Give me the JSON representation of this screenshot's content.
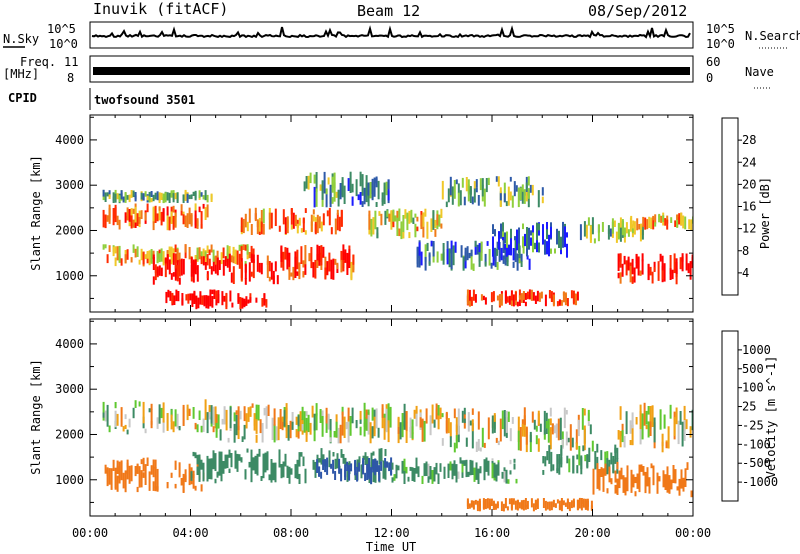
{
  "header": {
    "station": "Inuvik (fitACF)",
    "beam": "Beam 12",
    "date": "08/Sep/2012"
  },
  "strips": {
    "nsky_label": "N.Sky",
    "nsky_ticks": [
      "10^5",
      "10^0"
    ],
    "nsearch_label": "N.Search",
    "nsearch_ticks": [
      "10^5",
      "10^0"
    ],
    "freq_label": "Freq.",
    "freq_unit": "[MHz]",
    "freq_ticks": [
      "11",
      "8"
    ],
    "nave_label": "Nave",
    "nave_ticks": [
      "60",
      "0"
    ],
    "cpid_label": "CPID",
    "cpid_value": "twofsound 3501"
  },
  "chart_data": [
    {
      "type": "heatmap",
      "name": "power-panel",
      "xlabel": "Time UT",
      "ylabel": "Slant Range [km]",
      "x_ticks": [
        "00:00",
        "04:00",
        "08:00",
        "12:00",
        "16:00",
        "20:00",
        "00:00"
      ],
      "xlim_hours": [
        0,
        24
      ],
      "y_ticks": [
        1000,
        2000,
        3000,
        4000
      ],
      "ylim_km": [
        200,
        4550
      ],
      "colorbar": {
        "label": "Power [dB]",
        "tick_labels": [
          "4",
          "8",
          "12",
          "16",
          "20",
          "24",
          "28"
        ],
        "colors": [
          "#1b1bff",
          "#2e5aa8",
          "#3c8a64",
          "#8fcf3c",
          "#f0c828",
          "#f07a18",
          "#ff2a00",
          "#ff0000"
        ]
      },
      "patches": [
        {
          "t": [
            0.5,
            4.8
          ],
          "r": [
            2000,
            2600
          ],
          "v": 24
        },
        {
          "t": [
            0.5,
            4.8
          ],
          "r": [
            2600,
            2900
          ],
          "v": 12
        },
        {
          "t": [
            0.5,
            6.5
          ],
          "r": [
            1200,
            1700
          ],
          "v": 20
        },
        {
          "t": [
            2.5,
            7.5
          ],
          "r": [
            800,
            1500
          ],
          "v": 30
        },
        {
          "t": [
            3.0,
            7.0
          ],
          "r": [
            250,
            700
          ],
          "v": 32
        },
        {
          "t": [
            6.0,
            10.0
          ],
          "r": [
            1900,
            2500
          ],
          "v": 22
        },
        {
          "t": [
            7.5,
            10.5
          ],
          "r": [
            900,
            1700
          ],
          "v": 26
        },
        {
          "t": [
            8.5,
            12.0
          ],
          "r": [
            2500,
            3300
          ],
          "v": 10
        },
        {
          "t": [
            11.0,
            14.0
          ],
          "r": [
            1800,
            2500
          ],
          "v": 18
        },
        {
          "t": [
            13.0,
            17.5
          ],
          "r": [
            1100,
            1800
          ],
          "v": 8
        },
        {
          "t": [
            14.0,
            18.0
          ],
          "r": [
            2500,
            3200
          ],
          "v": 12
        },
        {
          "t": [
            15.0,
            19.5
          ],
          "r": [
            300,
            700
          ],
          "v": 28
        },
        {
          "t": [
            16.0,
            19.0
          ],
          "r": [
            1400,
            2200
          ],
          "v": 6
        },
        {
          "t": [
            19.5,
            22.0
          ],
          "r": [
            1700,
            2300
          ],
          "v": 14
        },
        {
          "t": [
            21.0,
            24.0
          ],
          "r": [
            800,
            1500
          ],
          "v": 30
        },
        {
          "t": [
            21.5,
            24.0
          ],
          "r": [
            2000,
            2400
          ],
          "v": 20
        }
      ]
    },
    {
      "type": "heatmap",
      "name": "velocity-panel",
      "xlabel": "Time UT",
      "ylabel": "Slant Range [km]",
      "x_ticks": [
        "00:00",
        "04:00",
        "08:00",
        "12:00",
        "16:00",
        "20:00",
        "00:00"
      ],
      "xlim_hours": [
        0,
        24
      ],
      "y_ticks": [
        1000,
        2000,
        3000,
        4000
      ],
      "ylim_km": [
        200,
        4550
      ],
      "colorbar": {
        "label": "Velocity [m s^-1]",
        "tick_labels": [
          "1000",
          "500",
          "100",
          "25",
          "-25",
          "-100",
          "-500",
          "-1000"
        ],
        "colors": [
          "#1e32b4",
          "#2e56a8",
          "#3c8a64",
          "#5fc830",
          "#c8c8c8",
          "#f0a014",
          "#f07818",
          "#ff4a00",
          "#ff0000"
        ]
      },
      "patches": [
        {
          "t": [
            0.5,
            5.0
          ],
          "r": [
            2000,
            2800
          ],
          "v": 0
        },
        {
          "t": [
            0.5,
            4.5
          ],
          "r": [
            700,
            1500
          ],
          "v": -300
        },
        {
          "t": [
            4.0,
            12.0
          ],
          "r": [
            900,
            1700
          ],
          "v": 300
        },
        {
          "t": [
            9.0,
            12.0
          ],
          "r": [
            900,
            1500
          ],
          "v": 800
        },
        {
          "t": [
            5.0,
            14.0
          ],
          "r": [
            1800,
            2700
          ],
          "v": 0
        },
        {
          "t": [
            12.0,
            17.0
          ],
          "r": [
            900,
            1500
          ],
          "v": 150
        },
        {
          "t": [
            14.0,
            20.0
          ],
          "r": [
            1600,
            2600
          ],
          "v": 0
        },
        {
          "t": [
            15.0,
            20.0
          ],
          "r": [
            300,
            600
          ],
          "v": -300
        },
        {
          "t": [
            18.0,
            21.0
          ],
          "r": [
            1100,
            1800
          ],
          "v": 200
        },
        {
          "t": [
            20.0,
            24.0
          ],
          "r": [
            600,
            1400
          ],
          "v": -300
        },
        {
          "t": [
            21.0,
            24.0
          ],
          "r": [
            1600,
            2700
          ],
          "v": 0
        }
      ]
    }
  ]
}
